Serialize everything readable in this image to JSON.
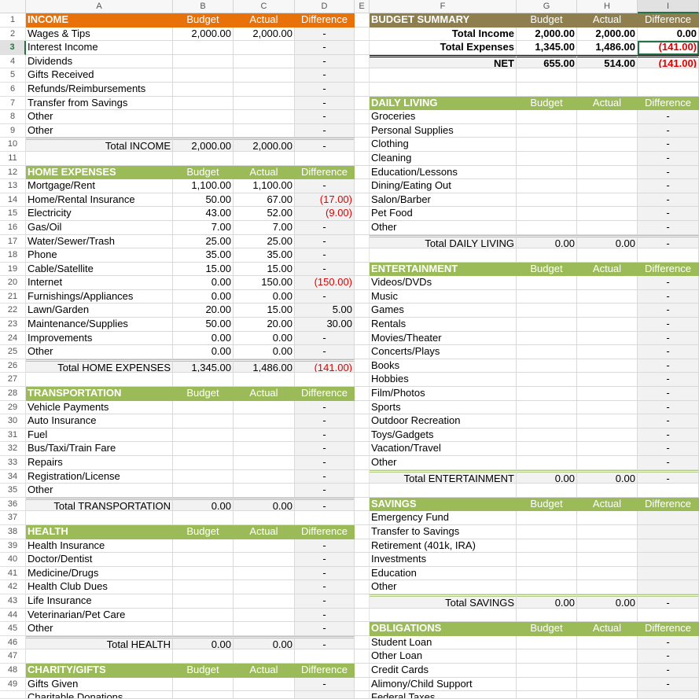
{
  "columns": [
    "A",
    "B",
    "C",
    "D",
    "E",
    "F",
    "G",
    "H",
    "I"
  ],
  "selected_cell": {
    "row": 3,
    "col": "I"
  },
  "colors": {
    "income_header": "#e8710a",
    "summary_header": "#8f7f4f",
    "section_header": "#9bbb59",
    "negative": "#e00000",
    "selection": "#217346"
  },
  "rows": [
    {
      "l": [
        "INCOME",
        "Budget",
        "Actual",
        "Difference",
        "h-orange"
      ],
      "r": [
        "BUDGET SUMMARY",
        "Budget",
        "Actual",
        "Difference",
        "h-olive"
      ]
    },
    {
      "l": [
        "Wages & Tips",
        "2,000.00",
        "2,000.00",
        "-",
        "item"
      ],
      "r": [
        "Total Income",
        "2,000.00",
        "2,000.00",
        "0.00",
        "sum"
      ]
    },
    {
      "l": [
        "Interest Income",
        "",
        "",
        "-",
        "item"
      ],
      "r": [
        "Total Expenses",
        "1,345.00",
        "1,486.00",
        "(141.00)",
        "sum"
      ]
    },
    {
      "l": [
        "Dividends",
        "",
        "",
        "-",
        "item"
      ],
      "r": [
        "NET",
        "655.00",
        "514.00",
        "(141.00)",
        "net"
      ]
    },
    {
      "l": [
        "Gifts Received",
        "",
        "",
        "-",
        "item"
      ],
      "r": [
        "",
        "",
        "",
        "",
        "blank"
      ]
    },
    {
      "l": [
        "Refunds/Reimbursements",
        "",
        "",
        "-",
        "item"
      ],
      "r": [
        "",
        "",
        "",
        "",
        "blank"
      ]
    },
    {
      "l": [
        "Transfer from Savings",
        "",
        "",
        "-",
        "item"
      ],
      "r": [
        "DAILY LIVING",
        "Budget",
        "Actual",
        "Difference",
        "h-green"
      ]
    },
    {
      "l": [
        "Other",
        "",
        "",
        "-",
        "item"
      ],
      "r": [
        "Groceries",
        "",
        "",
        "-",
        "item"
      ]
    },
    {
      "l": [
        "Other",
        "",
        "",
        "-",
        "item"
      ],
      "r": [
        "Personal Supplies",
        "",
        "",
        "-",
        "item"
      ]
    },
    {
      "l": [
        "Total INCOME",
        "2,000.00",
        "2,000.00",
        "-",
        "total"
      ],
      "r": [
        "Clothing",
        "",
        "",
        "-",
        "item"
      ]
    },
    {
      "l": [
        "",
        "",
        "",
        "",
        "blank"
      ],
      "r": [
        "Cleaning",
        "",
        "",
        "-",
        "item"
      ]
    },
    {
      "l": [
        "HOME EXPENSES",
        "Budget",
        "Actual",
        "Difference",
        "h-green"
      ],
      "r": [
        "Education/Lessons",
        "",
        "",
        "-",
        "item"
      ]
    },
    {
      "l": [
        "Mortgage/Rent",
        "1,100.00",
        "1,100.00",
        "-",
        "item"
      ],
      "r": [
        "Dining/Eating Out",
        "",
        "",
        "-",
        "item"
      ]
    },
    {
      "l": [
        "Home/Rental Insurance",
        "50.00",
        "67.00",
        "(17.00)",
        "item"
      ],
      "r": [
        "Salon/Barber",
        "",
        "",
        "-",
        "item"
      ]
    },
    {
      "l": [
        "Electricity",
        "43.00",
        "52.00",
        "(9.00)",
        "item"
      ],
      "r": [
        "Pet Food",
        "",
        "",
        "-",
        "item"
      ]
    },
    {
      "l": [
        "Gas/Oil",
        "7.00",
        "7.00",
        "-",
        "item"
      ],
      "r": [
        "Other",
        "",
        "",
        "-",
        "item"
      ]
    },
    {
      "l": [
        "Water/Sewer/Trash",
        "25.00",
        "25.00",
        "-",
        "item"
      ],
      "r": [
        "Total DAILY LIVING",
        "0.00",
        "0.00",
        "-",
        "total"
      ]
    },
    {
      "l": [
        "Phone",
        "35.00",
        "35.00",
        "-",
        "item"
      ],
      "r": [
        "",
        "",
        "",
        "",
        "blank"
      ]
    },
    {
      "l": [
        "Cable/Satellite",
        "15.00",
        "15.00",
        "-",
        "item"
      ],
      "r": [
        "ENTERTAINMENT",
        "Budget",
        "Actual",
        "Difference",
        "h-green"
      ]
    },
    {
      "l": [
        "Internet",
        "0.00",
        "150.00",
        "(150.00)",
        "item"
      ],
      "r": [
        "Videos/DVDs",
        "",
        "",
        "-",
        "item"
      ]
    },
    {
      "l": [
        "Furnishings/Appliances",
        "0.00",
        "0.00",
        "-",
        "item"
      ],
      "r": [
        "Music",
        "",
        "",
        "-",
        "item"
      ]
    },
    {
      "l": [
        "Lawn/Garden",
        "20.00",
        "15.00",
        "5.00",
        "item"
      ],
      "r": [
        "Games",
        "",
        "",
        "-",
        "item"
      ]
    },
    {
      "l": [
        "Maintenance/Supplies",
        "50.00",
        "20.00",
        "30.00",
        "item"
      ],
      "r": [
        "Rentals",
        "",
        "",
        "-",
        "item"
      ]
    },
    {
      "l": [
        "Improvements",
        "0.00",
        "0.00",
        "-",
        "item"
      ],
      "r": [
        "Movies/Theater",
        "",
        "",
        "-",
        "item"
      ]
    },
    {
      "l": [
        "Other",
        "0.00",
        "0.00",
        "-",
        "item"
      ],
      "r": [
        "Concerts/Plays",
        "",
        "",
        "-",
        "item"
      ]
    },
    {
      "l": [
        "Total HOME EXPENSES",
        "1,345.00",
        "1,486.00",
        "(141.00)",
        "total"
      ],
      "r": [
        "Books",
        "",
        "",
        "-",
        "item"
      ]
    },
    {
      "l": [
        "",
        "",
        "",
        "",
        "blank"
      ],
      "r": [
        "Hobbies",
        "",
        "",
        "-",
        "item"
      ]
    },
    {
      "l": [
        "TRANSPORTATION",
        "Budget",
        "Actual",
        "Difference",
        "h-green"
      ],
      "r": [
        "Film/Photos",
        "",
        "",
        "-",
        "item"
      ]
    },
    {
      "l": [
        "Vehicle Payments",
        "",
        "",
        "-",
        "item"
      ],
      "r": [
        "Sports",
        "",
        "",
        "-",
        "item"
      ]
    },
    {
      "l": [
        "Auto Insurance",
        "",
        "",
        "-",
        "item"
      ],
      "r": [
        "Outdoor Recreation",
        "",
        "",
        "-",
        "item"
      ]
    },
    {
      "l": [
        "Fuel",
        "",
        "",
        "-",
        "item"
      ],
      "r": [
        "Toys/Gadgets",
        "",
        "",
        "-",
        "item"
      ]
    },
    {
      "l": [
        "Bus/Taxi/Train Fare",
        "",
        "",
        "-",
        "item"
      ],
      "r": [
        "Vacation/Travel",
        "",
        "",
        "-",
        "item"
      ]
    },
    {
      "l": [
        "Repairs",
        "",
        "",
        "-",
        "item"
      ],
      "r": [
        "Other",
        "",
        "",
        "-",
        "item"
      ]
    },
    {
      "l": [
        "Registration/License",
        "",
        "",
        "-",
        "item"
      ],
      "r": [
        "Total ENTERTAINMENT",
        "0.00",
        "0.00",
        "-",
        "total"
      ]
    },
    {
      "l": [
        "Other",
        "",
        "",
        "-",
        "item"
      ],
      "r": [
        "",
        "",
        "",
        "",
        "blank"
      ]
    },
    {
      "l": [
        "Total TRANSPORTATION",
        "0.00",
        "0.00",
        "-",
        "total"
      ],
      "r": [
        "SAVINGS",
        "Budget",
        "Actual",
        "Difference",
        "h-green"
      ]
    },
    {
      "l": [
        "",
        "",
        "",
        "",
        "blank"
      ],
      "r": [
        "Emergency Fund",
        "",
        "",
        "",
        "item"
      ]
    },
    {
      "l": [
        "HEALTH",
        "Budget",
        "Actual",
        "Difference",
        "h-green"
      ],
      "r": [
        "Transfer to Savings",
        "",
        "",
        "",
        "item"
      ]
    },
    {
      "l": [
        "Health Insurance",
        "",
        "",
        "-",
        "item"
      ],
      "r": [
        "Retirement (401k, IRA)",
        "",
        "",
        "",
        "item"
      ]
    },
    {
      "l": [
        "Doctor/Dentist",
        "",
        "",
        "-",
        "item"
      ],
      "r": [
        "Investments",
        "",
        "",
        "",
        "item"
      ]
    },
    {
      "l": [
        "Medicine/Drugs",
        "",
        "",
        "-",
        "item"
      ],
      "r": [
        "Education",
        "",
        "",
        "",
        "item"
      ]
    },
    {
      "l": [
        "Health Club Dues",
        "",
        "",
        "-",
        "item"
      ],
      "r": [
        "Other",
        "",
        "",
        "",
        "item"
      ]
    },
    {
      "l": [
        "Life Insurance",
        "",
        "",
        "-",
        "item"
      ],
      "r": [
        "Total SAVINGS",
        "0.00",
        "0.00",
        "-",
        "total"
      ]
    },
    {
      "l": [
        "Veterinarian/Pet Care",
        "",
        "",
        "-",
        "item"
      ],
      "r": [
        "",
        "",
        "",
        "",
        "blank"
      ]
    },
    {
      "l": [
        "Other",
        "",
        "",
        "-",
        "item"
      ],
      "r": [
        "OBLIGATIONS",
        "Budget",
        "Actual",
        "Difference",
        "h-green"
      ]
    },
    {
      "l": [
        "Total HEALTH",
        "0.00",
        "0.00",
        "-",
        "total"
      ],
      "r": [
        "Student Loan",
        "",
        "",
        "-",
        "item"
      ]
    },
    {
      "l": [
        "",
        "",
        "",
        "",
        "blank"
      ],
      "r": [
        "Other Loan",
        "",
        "",
        "-",
        "item"
      ]
    },
    {
      "l": [
        "CHARITY/GIFTS",
        "Budget",
        "Actual",
        "Difference",
        "h-green"
      ],
      "r": [
        "Credit Cards",
        "",
        "",
        "-",
        "item"
      ]
    },
    {
      "l": [
        "Gifts Given",
        "",
        "",
        "-",
        "item"
      ],
      "r": [
        "Alimony/Child Support",
        "",
        "",
        "-",
        "item"
      ]
    },
    {
      "l": [
        "Charitable Donations",
        "",
        "",
        "",
        "item"
      ],
      "r": [
        "Federal Taxes",
        "",
        "",
        "",
        "item"
      ]
    }
  ]
}
